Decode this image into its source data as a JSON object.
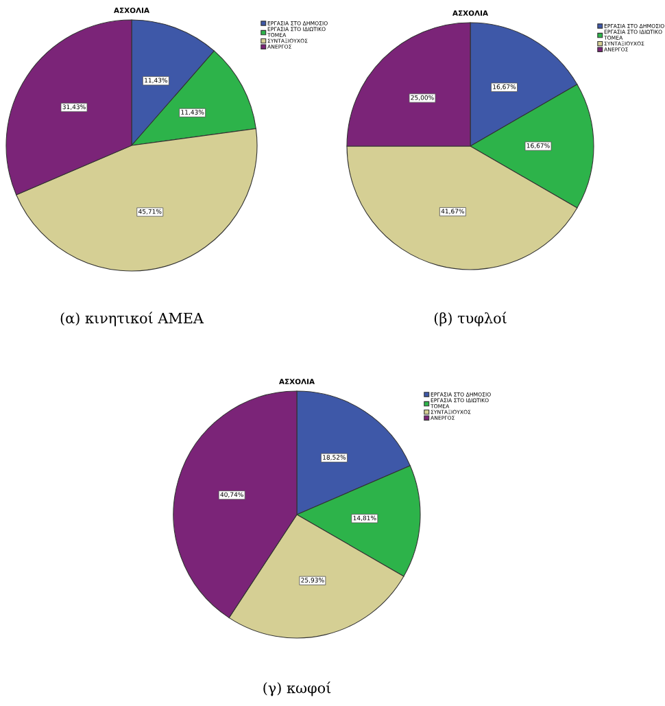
{
  "chart_data": [
    {
      "type": "pie",
      "title": "ΑΣΧΟΛΙΑ",
      "categories": [
        "ΕΡΓΑΣΙΑ ΣΤΟ ΔΗΜΟΣΙΟ",
        "ΕΡΓΑΣΙΑ ΣΤΟ ΙΔΙΩΤΙΚΟ\nΤΟΜΕΑ",
        "ΣΥΝΤΑΞΙΟΥΧΟΣ",
        "ΑΝΕΡΓΟΣ"
      ],
      "values": [
        11.43,
        11.43,
        45.71,
        31.43
      ],
      "value_labels": [
        "11,43%",
        "11,43%",
        "45,71%",
        "31,43%"
      ],
      "colors": [
        "#3e58a8",
        "#2db34a",
        "#d5cf94",
        "#7b2478"
      ],
      "legend": "top right",
      "annotations": [
        "(α) κινητικοί ΑΜΕΑ"
      ]
    },
    {
      "type": "pie",
      "title": "ΑΣΧΟΛΙΑ",
      "categories": [
        "ΕΡΓΑΣΙΑ ΣΤΟ ΔΗΜΟΣΙΟ",
        "ΕΡΓΑΣΙΑ ΣΤΟ ΙΔΙΩΤΙΚΟ\nΤΟΜΕΑ",
        "ΣΥΝΤΑΞΙΟΥΧΟΣ",
        "ΑΝΕΡΓΟΣ"
      ],
      "values": [
        16.67,
        16.67,
        41.67,
        25.0
      ],
      "value_labels": [
        "16,67%",
        "16,67%",
        "41,67%",
        "25,00%"
      ],
      "colors": [
        "#3e58a8",
        "#2db34a",
        "#d5cf94",
        "#7b2478"
      ],
      "legend": "top right",
      "annotations": [
        "(β) τυφλοί"
      ]
    },
    {
      "type": "pie",
      "title": "ΑΣΧΟΛΙΑ",
      "categories": [
        "ΕΡΓΑΣΙΑ ΣΤΟ ΔΗΜΟΣΙΟ",
        "ΕΡΓΑΣΙΑ ΣΤΟ ΙΔΙΩΤΙΚΟ\nΤΟΜΕΑ",
        "ΣΥΝΤΑΞΙΟΥΧΟΣ",
        "ΑΝΕΡΓΟΣ"
      ],
      "values": [
        18.52,
        14.81,
        25.93,
        40.74
      ],
      "value_labels": [
        "18,52%",
        "14,81%",
        "25,93%",
        "40,74%"
      ],
      "colors": [
        "#3e58a8",
        "#2db34a",
        "#d5cf94",
        "#7b2478"
      ],
      "legend": "top right",
      "annotations": [
        "(γ) κωφοί"
      ]
    }
  ]
}
